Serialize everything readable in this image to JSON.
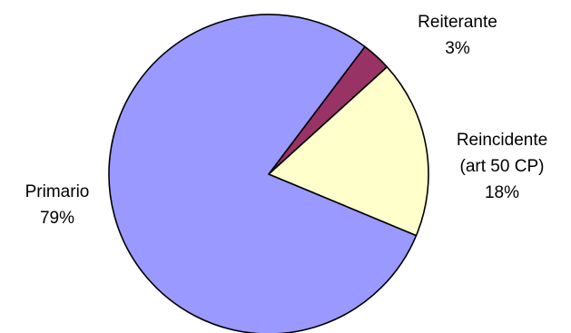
{
  "chart_data": {
    "type": "pie",
    "title": "",
    "start_angle_deg": 53,
    "direction": "clockwise",
    "slices": [
      {
        "name": "Reiterante",
        "value": 3,
        "label_lines": [
          "Reiterante"
        ],
        "pct_label": "3%",
        "color": "#993366"
      },
      {
        "name": "Reincidente (art 50 CP)",
        "value": 18,
        "label_lines": [
          "Reincidente",
          "(art 50 CP)"
        ],
        "pct_label": "18%",
        "color": "#FFFFCC"
      },
      {
        "name": "Primario",
        "value": 79,
        "label_lines": [
          "Primario"
        ],
        "pct_label": "79%",
        "color": "#9999FF"
      }
    ],
    "legend": "none",
    "data_labels": "outside"
  }
}
